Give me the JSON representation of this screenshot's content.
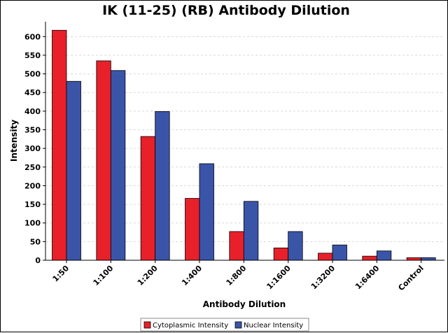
{
  "chart_data": {
    "type": "bar",
    "title": "IK (11-25) (RB) Antibody Dilution",
    "xlabel": "Antibody Dilution",
    "ylabel": "Intensity",
    "ylim": [
      0,
      640
    ],
    "yticks": [
      0,
      50,
      100,
      150,
      200,
      250,
      300,
      350,
      400,
      450,
      500,
      550,
      600
    ],
    "grid": "horizontal-dashed",
    "legend_position": "bottom-center",
    "categories": [
      "1:50",
      "1:100",
      "1:200",
      "1:400",
      "1:800",
      "1:1600",
      "1:3200",
      "1:6400",
      "Control"
    ],
    "series": [
      {
        "name": "Cytoplasmic Intensity",
        "color": "#e8202a",
        "values": [
          617,
          535,
          332,
          166,
          77,
          33,
          19,
          11,
          7
        ]
      },
      {
        "name": "Nuclear Intensity",
        "color": "#3a55a8",
        "values": [
          480,
          509,
          399,
          259,
          158,
          77,
          41,
          25,
          7
        ]
      }
    ]
  }
}
